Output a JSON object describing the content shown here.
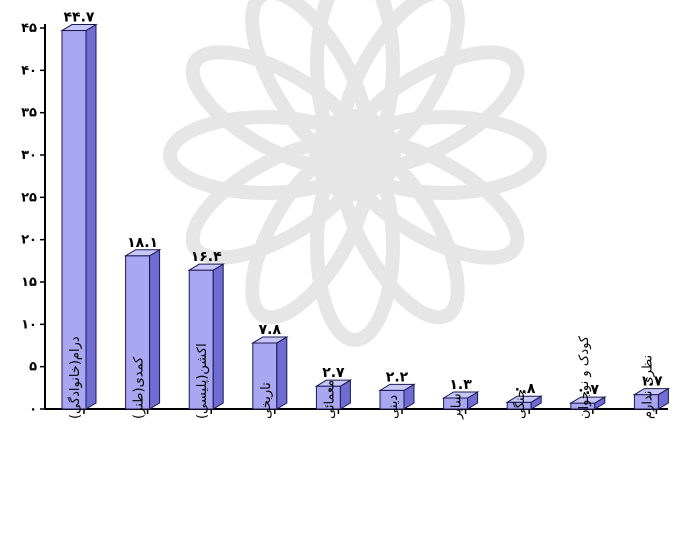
{
  "chart_data": {
    "type": "bar",
    "title": "",
    "xlabel": "",
    "ylabel": "",
    "ylim": [
      0,
      45
    ],
    "yticks": [
      0,
      5,
      10,
      15,
      20,
      25,
      30,
      35,
      40,
      45
    ],
    "ytick_labels": [
      "۰",
      "۵",
      "۱۰",
      "۱۵",
      "۲۰",
      "۲۵",
      "۳۰",
      "۳۵",
      "۴۰",
      "۴۵"
    ],
    "grid": false,
    "style": "3d",
    "colors": {
      "bar_front": "#a9a7f2",
      "bar_side": "#6f6cd2",
      "bar_top": "#c9c7fa",
      "bar_outline": "#1a1850",
      "axis": "#000000",
      "watermark": "#e6e6e6"
    },
    "categories": [
      "درام(خانوادگی)",
      "کمدی(طنز)",
      "اکشن(پلیسی)",
      "تاریخی",
      "معمائی",
      "دینی",
      "سایر",
      "جنگی",
      "کودک و نوجوان",
      "نظری ندارم"
    ],
    "values": [
      44.7,
      18.1,
      16.4,
      7.8,
      2.7,
      2.2,
      1.3,
      0.8,
      0.7,
      1.7
    ],
    "value_labels": [
      "۴۴.۷",
      "۱۸.۱",
      "۱۶.۴",
      "۷.۸",
      "۲.۷",
      "۲.۲",
      "۱.۳",
      "۰.۸",
      "۰.۷",
      "۱.۷"
    ]
  }
}
